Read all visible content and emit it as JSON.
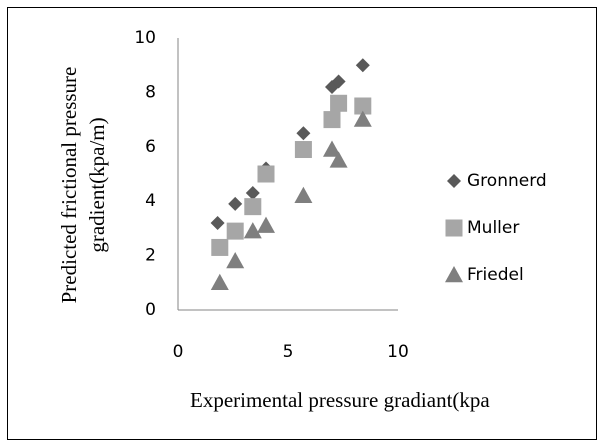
{
  "chart_data": {
    "type": "scatter",
    "xlabel": "Experimental pressure gradiant(kpa",
    "ylabel": [
      "Predicted frictional pressure",
      "gradient(kpa/m)"
    ],
    "xlim": [
      0,
      10
    ],
    "xticks": [
      0,
      5,
      10
    ],
    "ylim": [
      0,
      10
    ],
    "yticks": [
      0,
      2,
      4,
      6,
      8,
      10
    ],
    "grid": false,
    "legend": "right",
    "series": [
      {
        "name": "Gronnerd",
        "color": "#595959",
        "marker": "diamond",
        "x": [
          1.8,
          2.6,
          3.4,
          4.0,
          5.7,
          7.0,
          7.3,
          8.4
        ],
        "values": [
          3.2,
          3.9,
          4.3,
          5.2,
          6.5,
          8.2,
          8.4,
          9.0
        ]
      },
      {
        "name": "Muller",
        "color": "#a6a6a6",
        "marker": "square",
        "x": [
          1.9,
          2.6,
          3.4,
          4.0,
          5.7,
          7.0,
          7.3,
          8.4
        ],
        "values": [
          2.3,
          2.9,
          3.8,
          5.0,
          5.9,
          7.0,
          7.6,
          7.5
        ]
      },
      {
        "name": "Friedel",
        "color": "#7f7f7f",
        "marker": "triangle",
        "x": [
          1.9,
          2.6,
          3.4,
          4.0,
          5.7,
          7.0,
          7.3,
          8.4
        ],
        "values": [
          1.0,
          1.8,
          2.9,
          3.1,
          4.2,
          5.9,
          5.5,
          7.0
        ]
      }
    ]
  }
}
